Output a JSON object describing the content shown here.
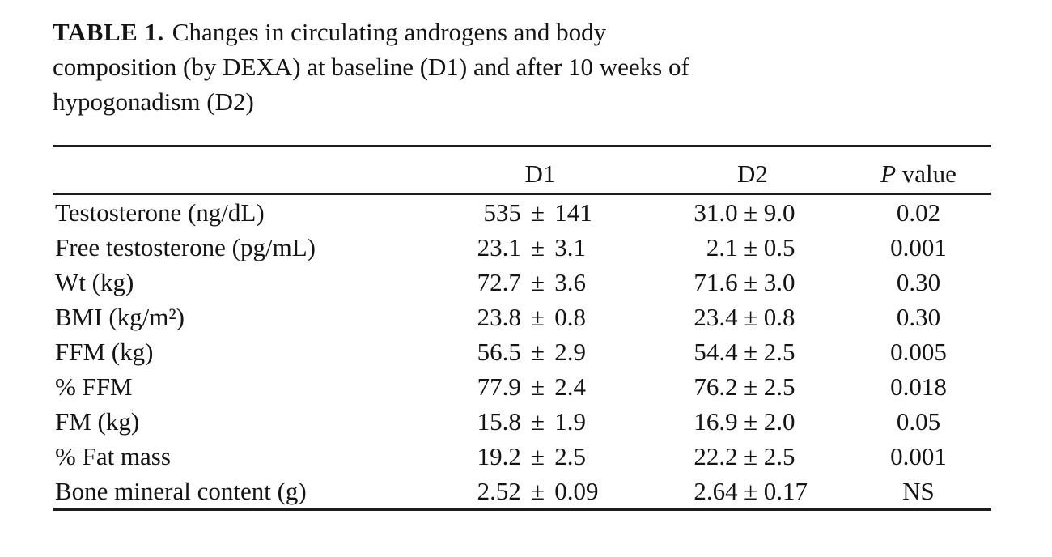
{
  "caption": {
    "label": "TABLE 1.",
    "lines": [
      "Changes in circulating androgens and body",
      "composition (by DEXA) at baseline (D1) and after 10 weeks of",
      "hypogonadism (D2)"
    ]
  },
  "header": {
    "label": "",
    "d1": "D1",
    "d2": "D2",
    "p_symbol": "P",
    "p_rest": " value"
  },
  "symbols": {
    "plus_minus": "±"
  },
  "rows": [
    {
      "label": "Testosterone (ng/dL)",
      "d1_mean": "535",
      "d1_sd": "141",
      "d2_mean": "31.0",
      "d2_sd": "9.0",
      "p": "0.02"
    },
    {
      "label": "Free testosterone (pg/mL)",
      "d1_mean": "23.1",
      "d1_sd": "3.1",
      "d2_mean": "2.1",
      "d2_sd": "0.5",
      "p": "0.001"
    },
    {
      "label": "Wt (kg)",
      "d1_mean": "72.7",
      "d1_sd": "3.6",
      "d2_mean": "71.6",
      "d2_sd": "3.0",
      "p": "0.30"
    },
    {
      "label": "BMI (kg/m²)",
      "d1_mean": "23.8",
      "d1_sd": "0.8",
      "d2_mean": "23.4",
      "d2_sd": "0.8",
      "p": "0.30"
    },
    {
      "label": "FFM (kg)",
      "d1_mean": "56.5",
      "d1_sd": "2.9",
      "d2_mean": "54.4",
      "d2_sd": "2.5",
      "p": "0.005"
    },
    {
      "label": "% FFM",
      "d1_mean": "77.9",
      "d1_sd": "2.4",
      "d2_mean": "76.2",
      "d2_sd": "2.5",
      "p": "0.018"
    },
    {
      "label": "FM (kg)",
      "d1_mean": "15.8",
      "d1_sd": "1.9",
      "d2_mean": "16.9",
      "d2_sd": "2.0",
      "p": "0.05"
    },
    {
      "label": "% Fat mass",
      "d1_mean": "19.2",
      "d1_sd": "2.5",
      "d2_mean": "22.2",
      "d2_sd": "2.5",
      "p": "0.001"
    },
    {
      "label": "Bone mineral content (g)",
      "d1_mean": "2.52",
      "d1_sd": "0.09",
      "d2_mean": "2.64",
      "d2_sd": "0.17",
      "p": "NS"
    }
  ]
}
